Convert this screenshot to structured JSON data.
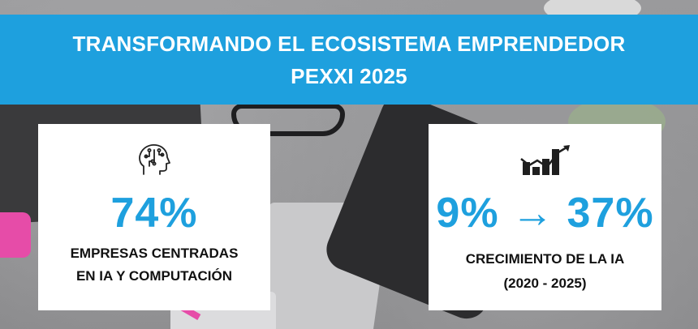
{
  "banner": {
    "line1": "TRANSFORMANDO EL ECOSISTEMA EMPRENDEDOR",
    "line2": "PEXXI 2025",
    "color": "#1ea0de"
  },
  "cards": [
    {
      "icon": "ai-brain-head-icon",
      "stat": "74%",
      "label_line1": "EMPRESAS CENTRADAS",
      "label_line2": "EN IA Y COMPUTACIÓN"
    },
    {
      "icon": "growth-chart-arrow-icon",
      "stat": "9% → 37%",
      "label_line1": "CRECIMIENTO DE LA IA",
      "label_line2": "(2020 - 2025)"
    }
  ],
  "colors": {
    "accent": "#1ea0de",
    "card_bg": "#ffffff",
    "text": "#111111"
  }
}
